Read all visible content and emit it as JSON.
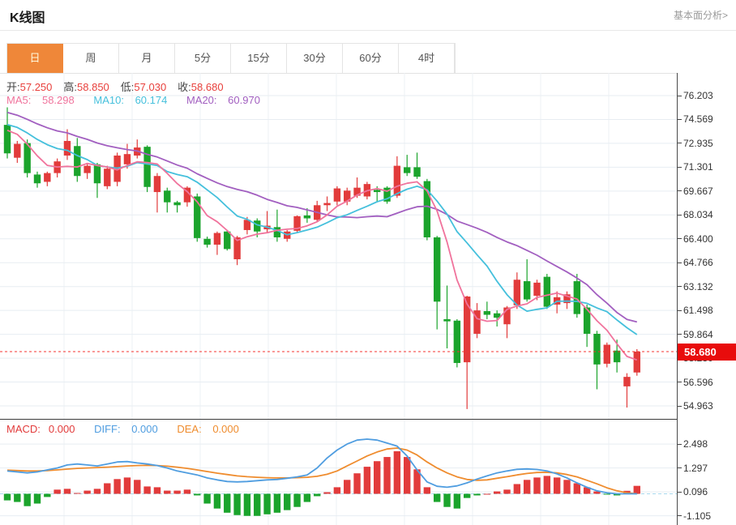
{
  "header": {
    "title": "K线图",
    "link": "基本面分析>"
  },
  "tabs": {
    "items": [
      {
        "label": "日",
        "active": true
      },
      {
        "label": "周",
        "active": false
      },
      {
        "label": "月",
        "active": false
      },
      {
        "label": "5分",
        "active": false
      },
      {
        "label": "15分",
        "active": false
      },
      {
        "label": "30分",
        "active": false
      },
      {
        "label": "60分",
        "active": false
      },
      {
        "label": "4时",
        "active": false
      }
    ]
  },
  "ohlc": {
    "open_label": "开:",
    "open": "57.250",
    "high_label": "高:",
    "high": "58.850",
    "low_label": "低:",
    "low": "57.030",
    "close_label": "收:",
    "close": "58.680"
  },
  "ma_legend": {
    "ma5_label": "MA5:",
    "ma5": "58.298",
    "ma10_label": "MA10:",
    "ma10": "60.174",
    "ma20_label": "MA20:",
    "ma20": "60.970"
  },
  "macd_legend": {
    "macd_label": "MACD:",
    "macd": "0.000",
    "diff_label": "DIFF:",
    "diff": "0.000",
    "dea_label": "DEA:",
    "dea": "0.000"
  },
  "price_badge": "58.680",
  "colors": {
    "up_red": "#e23b3b",
    "down_green": "#1ba42c",
    "ma5_pink": "#f0739c",
    "ma10_cyan": "#45c0dc",
    "ma20_purple": "#a25fc0",
    "diff_blue": "#4f9de0",
    "dea_orange": "#ef8c2e",
    "badge_red": "#e80c0c",
    "dotted_red": "#f43530",
    "grid": "#e7edf2",
    "vgrid": "#eef2f5",
    "axis_dark": "#4a4a4a",
    "tab_orange": "#ef8739",
    "value_red": "#e8403c"
  },
  "chart_data": {
    "type": "candlestick+macd",
    "title": "K线图",
    "main": {
      "y_ticks": [
        "76.203",
        "74.569",
        "72.935",
        "71.301",
        "69.667",
        "68.034",
        "66.400",
        "64.766",
        "63.132",
        "61.498",
        "59.864",
        "58.230",
        "56.596",
        "54.963"
      ],
      "y_max_tick": 76.203,
      "y_min_tick": 54.963,
      "current_price": 58.68,
      "ma_warmup_closes": [
        77.0,
        76.8,
        76.6,
        76.4,
        76.2,
        76.0,
        75.8,
        75.6,
        75.4,
        75.2,
        75.0,
        74.8,
        74.7,
        74.6,
        74.5,
        74.4,
        74.3,
        74.25,
        74.2,
        74.15
      ],
      "candles_ohlc": [
        [
          74.2,
          75.4,
          71.9,
          72.25
        ],
        [
          71.95,
          73.1,
          71.6,
          72.9
        ],
        [
          72.95,
          73.2,
          70.6,
          70.9
        ],
        [
          70.8,
          71.0,
          69.9,
          70.2
        ],
        [
          70.3,
          71.0,
          70.0,
          70.9
        ],
        [
          70.9,
          71.9,
          70.6,
          71.7
        ],
        [
          72.1,
          73.9,
          71.8,
          73.1
        ],
        [
          72.75,
          73.3,
          70.3,
          70.7
        ],
        [
          70.9,
          71.6,
          70.5,
          71.4
        ],
        [
          71.5,
          71.6,
          69.2,
          70.2
        ],
        [
          70.0,
          71.4,
          69.8,
          71.2
        ],
        [
          70.3,
          72.3,
          70.0,
          72.1
        ],
        [
          71.5,
          72.9,
          71.2,
          72.2
        ],
        [
          72.1,
          73.2,
          71.9,
          72.65
        ],
        [
          72.7,
          72.8,
          69.6,
          69.95
        ],
        [
          69.6,
          70.9,
          68.2,
          70.7
        ],
        [
          69.7,
          69.9,
          68.2,
          68.9
        ],
        [
          68.9,
          69.0,
          68.2,
          68.7
        ],
        [
          68.9,
          70.0,
          68.6,
          69.9
        ],
        [
          69.3,
          69.5,
          66.2,
          66.45
        ],
        [
          66.4,
          66.55,
          65.8,
          66.0
        ],
        [
          66.0,
          66.9,
          65.3,
          66.8
        ],
        [
          66.9,
          67.0,
          65.6,
          65.7
        ],
        [
          65.0,
          66.6,
          64.6,
          66.5
        ],
        [
          67.0,
          67.9,
          66.7,
          67.7
        ],
        [
          67.65,
          67.8,
          66.5,
          66.9
        ],
        [
          67.05,
          68.3,
          66.8,
          67.3
        ],
        [
          67.2,
          68.4,
          66.2,
          66.5
        ],
        [
          66.4,
          67.0,
          66.2,
          66.9
        ],
        [
          66.95,
          68.0,
          66.8,
          67.95
        ],
        [
          68.0,
          68.5,
          67.5,
          67.8
        ],
        [
          67.7,
          69.0,
          67.6,
          68.7
        ],
        [
          68.7,
          69.3,
          68.3,
          68.85
        ],
        [
          68.95,
          70.0,
          68.7,
          69.85
        ],
        [
          68.95,
          69.9,
          68.7,
          69.7
        ],
        [
          69.35,
          70.6,
          69.2,
          69.9
        ],
        [
          69.3,
          70.3,
          69.1,
          70.15
        ],
        [
          69.75,
          70.0,
          68.9,
          69.6
        ],
        [
          69.9,
          70.0,
          68.8,
          68.95
        ],
        [
          69.35,
          72.05,
          69.2,
          71.4
        ],
        [
          71.3,
          72.15,
          70.7,
          70.9
        ],
        [
          71.3,
          72.3,
          70.5,
          70.65
        ],
        [
          70.35,
          70.5,
          66.3,
          66.5
        ],
        [
          66.5,
          66.6,
          60.2,
          62.1
        ],
        [
          60.9,
          63.2,
          58.9,
          60.75
        ],
        [
          60.8,
          60.9,
          57.6,
          57.9
        ],
        [
          57.95,
          62.5,
          54.75,
          62.45
        ],
        [
          59.9,
          62.0,
          59.6,
          61.5
        ],
        [
          61.45,
          62.1,
          60.9,
          61.2
        ],
        [
          61.3,
          61.5,
          60.4,
          61.0
        ],
        [
          60.55,
          61.8,
          59.6,
          61.7
        ],
        [
          61.85,
          64.1,
          61.6,
          63.6
        ],
        [
          63.5,
          65.0,
          62.1,
          62.25
        ],
        [
          62.5,
          63.6,
          62.2,
          63.4
        ],
        [
          63.8,
          64.0,
          61.6,
          61.75
        ],
        [
          61.9,
          62.8,
          61.3,
          62.4
        ],
        [
          62.0,
          62.8,
          61.6,
          62.6
        ],
        [
          63.5,
          64.0,
          61.0,
          61.25
        ],
        [
          61.7,
          61.9,
          59.0,
          59.9
        ],
        [
          59.9,
          60.1,
          56.1,
          57.8
        ],
        [
          57.85,
          59.3,
          57.6,
          59.15
        ],
        [
          58.75,
          59.5,
          57.25,
          57.95
        ],
        [
          56.3,
          57.2,
          54.85,
          56.95
        ],
        [
          57.25,
          58.85,
          57.03,
          58.68
        ]
      ]
    },
    "macd": {
      "y_ticks": [
        "2.498",
        "1.297",
        "0.096",
        "-1.105"
      ],
      "hist": [
        -0.33,
        -0.41,
        -0.62,
        -0.49,
        -0.16,
        0.21,
        0.25,
        0.04,
        0.16,
        0.25,
        0.53,
        0.74,
        0.82,
        0.7,
        0.37,
        0.33,
        0.16,
        0.16,
        0.21,
        -0.08,
        -0.49,
        -0.74,
        -0.95,
        -1.07,
        -1.11,
        -1.11,
        -1.03,
        -0.95,
        -0.82,
        -0.66,
        -0.41,
        -0.12,
        0.08,
        0.33,
        0.7,
        1.03,
        1.36,
        1.64,
        1.85,
        2.14,
        1.85,
        1.23,
        0.33,
        -0.41,
        -0.66,
        -0.74,
        -0.21,
        -0.08,
        0.0,
        0.12,
        0.21,
        0.49,
        0.7,
        0.82,
        0.9,
        0.82,
        0.7,
        0.53,
        0.33,
        0.12,
        -0.04,
        -0.08,
        0.15,
        0.4
      ],
      "diff": [
        1.15,
        1.1,
        1.05,
        1.1,
        1.2,
        1.3,
        1.45,
        1.5,
        1.45,
        1.4,
        1.5,
        1.6,
        1.62,
        1.55,
        1.5,
        1.42,
        1.3,
        1.15,
        1.05,
        0.95,
        0.8,
        0.7,
        0.62,
        0.6,
        0.62,
        0.66,
        0.7,
        0.72,
        0.78,
        0.85,
        0.95,
        1.3,
        1.8,
        2.2,
        2.5,
        2.7,
        2.75,
        2.7,
        2.55,
        2.4,
        1.9,
        1.2,
        0.6,
        0.38,
        0.33,
        0.4,
        0.55,
        0.74,
        0.9,
        1.05,
        1.15,
        1.23,
        1.25,
        1.22,
        1.15,
        1.0,
        0.8,
        0.55,
        0.33,
        0.15,
        0.05,
        0.0,
        0.0,
        0.0
      ],
      "dea": [
        1.19,
        1.17,
        1.15,
        1.15,
        1.17,
        1.2,
        1.24,
        1.28,
        1.3,
        1.32,
        1.34,
        1.37,
        1.4,
        1.42,
        1.43,
        1.42,
        1.39,
        1.34,
        1.28,
        1.2,
        1.12,
        1.04,
        0.97,
        0.9,
        0.86,
        0.83,
        0.81,
        0.8,
        0.8,
        0.81,
        0.83,
        0.88,
        0.98,
        1.15,
        1.4,
        1.65,
        1.9,
        2.1,
        2.25,
        2.3,
        2.2,
        1.95,
        1.6,
        1.3,
        1.05,
        0.85,
        0.72,
        0.68,
        0.7,
        0.78,
        0.86,
        0.95,
        1.02,
        1.07,
        1.08,
        1.05,
        0.97,
        0.85,
        0.68,
        0.5,
        0.3,
        0.15,
        0.05,
        0.0
      ]
    }
  }
}
